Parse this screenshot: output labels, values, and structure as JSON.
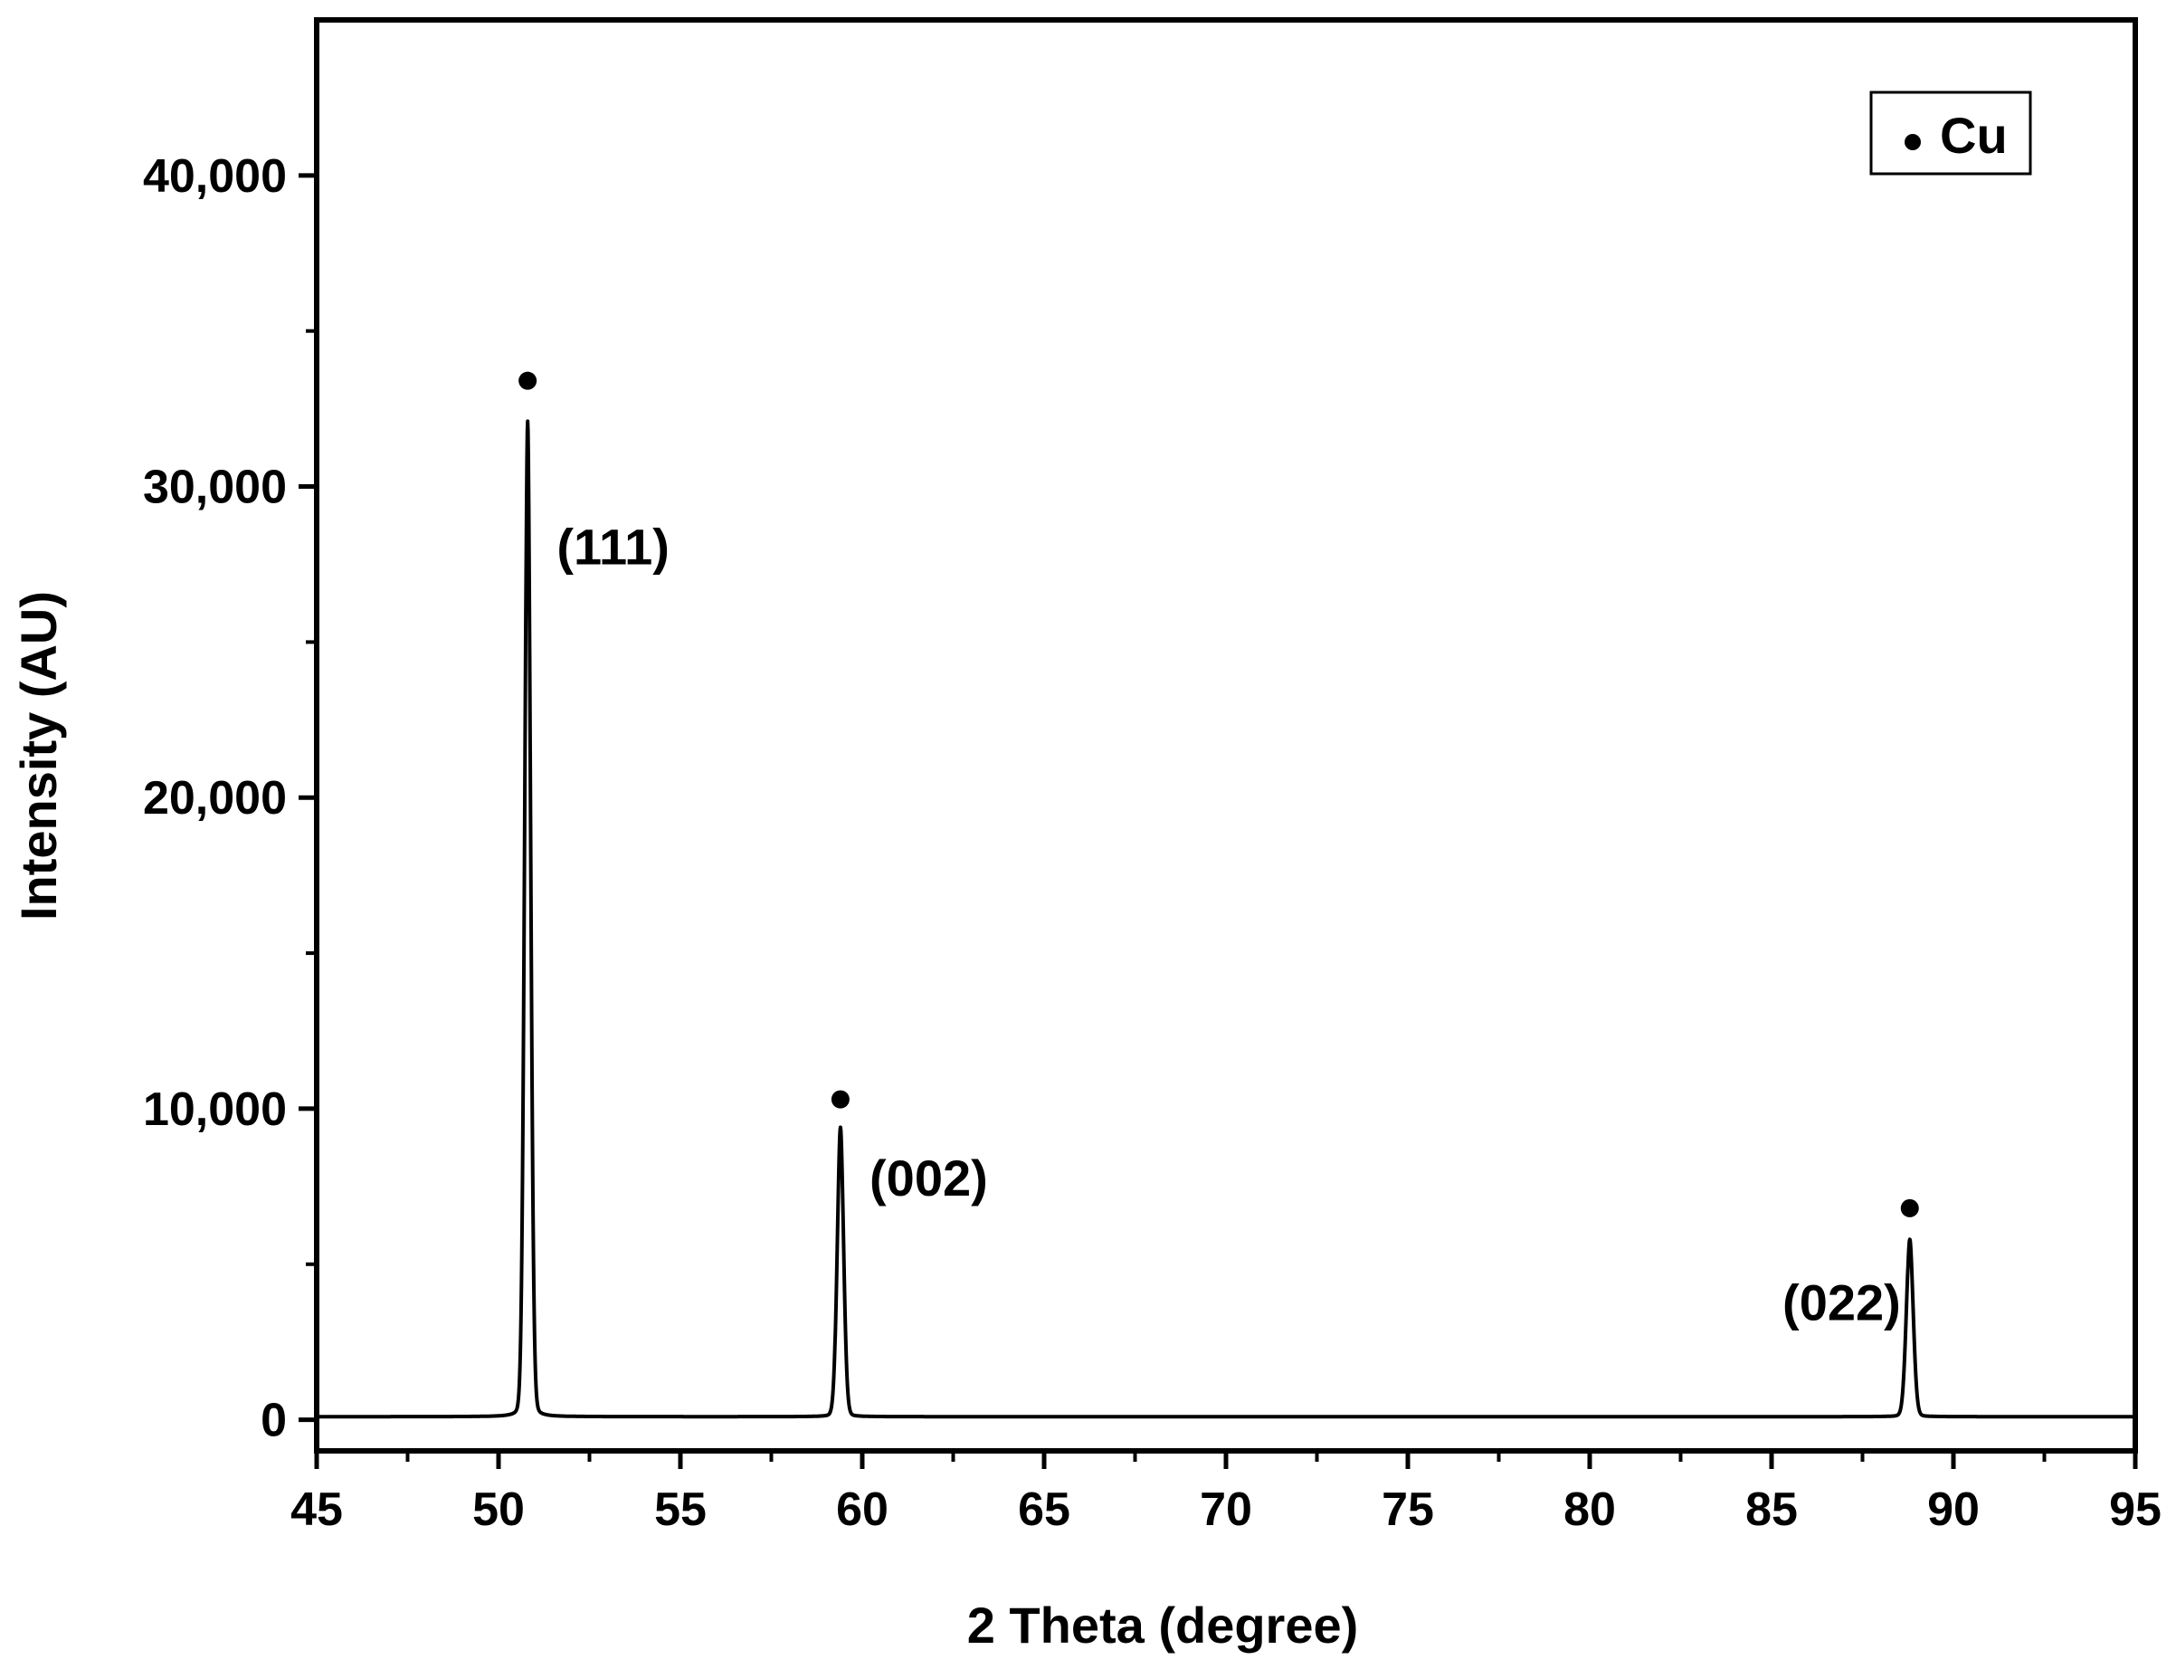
{
  "chart_data": {
    "type": "line",
    "xlabel": "2 Theta (degree)",
    "ylabel": "Intensity (AU)",
    "xlim": [
      45,
      95
    ],
    "ylim": [
      -1000,
      45000
    ],
    "x_ticks": [
      45,
      50,
      55,
      60,
      65,
      70,
      75,
      80,
      85,
      90,
      95
    ],
    "x_tick_labels": [
      "45",
      "50",
      "55",
      "60",
      "65",
      "70",
      "75",
      "80",
      "85",
      "90",
      "95"
    ],
    "y_ticks": [
      0,
      10000,
      20000,
      30000,
      40000
    ],
    "y_tick_labels": [
      "0",
      "10,000",
      "20,000",
      "30,000",
      "40,000"
    ],
    "grid": false,
    "legend": {
      "position": "top-right",
      "entries": [
        {
          "marker": "circle",
          "label": "Cu"
        }
      ]
    },
    "series": [
      {
        "name": "Cu",
        "color": "#000000",
        "baseline": 100,
        "peaks": [
          {
            "x": 50.8,
            "y": 32000,
            "width": 0.12
          },
          {
            "x": 59.4,
            "y": 9300,
            "width": 0.13
          },
          {
            "x": 88.8,
            "y": 5700,
            "width": 0.14
          }
        ]
      }
    ],
    "annotations": [
      {
        "text": "(111)",
        "x": 51.6,
        "y": 27500,
        "marker_x": 50.8,
        "marker_y": 33400
      },
      {
        "text": "(002)",
        "x": 60.2,
        "y": 7200,
        "marker_x": 59.4,
        "marker_y": 10300
      },
      {
        "text": "(022)",
        "x": 85.3,
        "y": 3200,
        "marker_x": 88.8,
        "marker_y": 6800
      }
    ]
  }
}
